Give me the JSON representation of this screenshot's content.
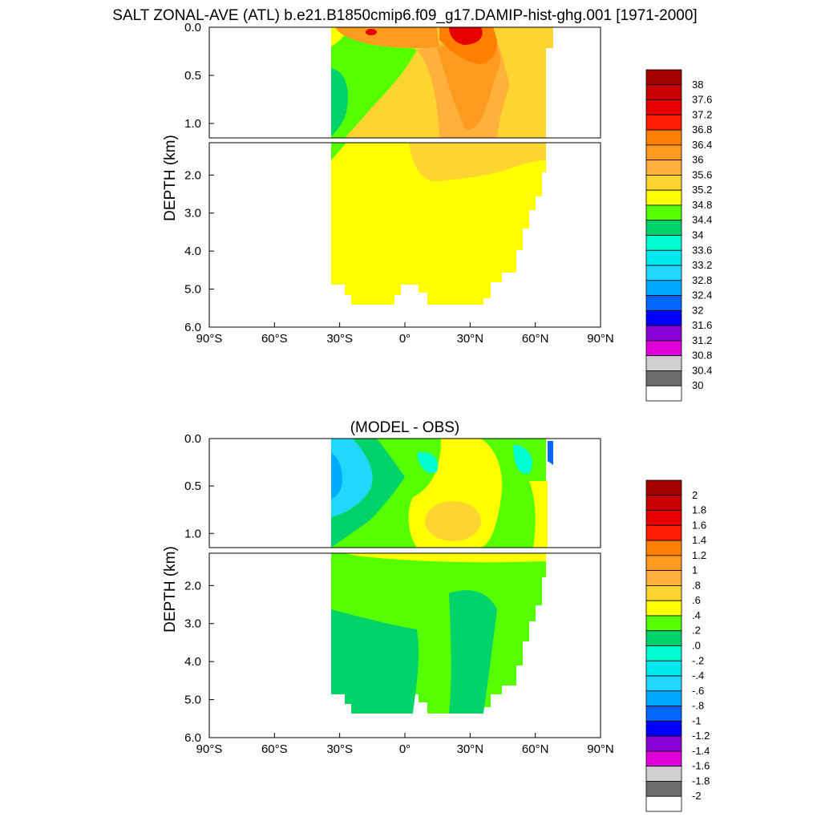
{
  "figure_title": "SALT ZONAL-AVE (ATL) b.e21.B1850cmip6.f09_g17.DAMIP-hist-ghg.001 [1971-2000]",
  "chart_data": [
    {
      "type": "heatmap",
      "title": "",
      "ylabel": "DEPTH (km)",
      "xlabel": "",
      "x_ticks": [
        "90°S",
        "60°S",
        "30°S",
        "0°",
        "30°N",
        "60°N",
        "90°N"
      ],
      "x_tick_values": [
        -90,
        -60,
        -30,
        0,
        30,
        60,
        90
      ],
      "xlim": [
        -90,
        90
      ],
      "upper_panel": {
        "ylim": [
          0,
          1.15
        ],
        "y_ticks": [
          "0.0",
          "0.5",
          "1.0"
        ],
        "y_tick_values": [
          0,
          0.5,
          1.0
        ]
      },
      "lower_panel": {
        "ylim": [
          1.15,
          6.0
        ],
        "y_ticks": [
          "2.0",
          "3.0",
          "4.0",
          "5.0",
          "6.0"
        ],
        "y_tick_values": [
          2,
          3,
          4,
          5,
          6
        ]
      },
      "colorbar": {
        "labels": [
          "38",
          "37.6",
          "37.2",
          "36.8",
          "36.4",
          "36",
          "35.6",
          "35.2",
          "34.8",
          "34.4",
          "34",
          "33.6",
          "33.2",
          "32.8",
          "32.4",
          "32",
          "31.6",
          "31.2",
          "30.8",
          "30.4",
          "30"
        ],
        "levels": [
          38,
          37.6,
          37.2,
          36.8,
          36.4,
          36,
          35.6,
          35.2,
          34.8,
          34.4,
          34,
          33.6,
          33.2,
          32.8,
          32.4,
          32,
          31.6,
          31.2,
          30.8,
          30.4,
          30
        ]
      }
    },
    {
      "type": "heatmap",
      "title": "(MODEL - OBS)",
      "ylabel": "DEPTH (km)",
      "xlabel": "",
      "x_ticks": [
        "90°S",
        "60°S",
        "30°S",
        "0°",
        "30°N",
        "60°N",
        "90°N"
      ],
      "x_tick_values": [
        -90,
        -60,
        -30,
        0,
        30,
        60,
        90
      ],
      "xlim": [
        -90,
        90
      ],
      "upper_panel": {
        "ylim": [
          0,
          1.15
        ],
        "y_ticks": [
          "0.0",
          "0.5",
          "1.0"
        ],
        "y_tick_values": [
          0,
          0.5,
          1.0
        ]
      },
      "lower_panel": {
        "ylim": [
          1.15,
          6.0
        ],
        "y_ticks": [
          "2.0",
          "3.0",
          "4.0",
          "5.0",
          "6.0"
        ],
        "y_tick_values": [
          2,
          3,
          4,
          5,
          6
        ]
      },
      "colorbar": {
        "labels": [
          "2",
          "1.8",
          "1.6",
          "1.4",
          "1.2",
          "1",
          ".8",
          ".6",
          ".4",
          ".2",
          ".0",
          "-.2",
          "-.4",
          "-.6",
          "-.8",
          "-1",
          "-1.2",
          "-1.4",
          "-1.6",
          "-1.8",
          "-2"
        ],
        "levels": [
          2,
          1.8,
          1.6,
          1.4,
          1.2,
          1,
          0.8,
          0.6,
          0.4,
          0.2,
          0,
          -0.2,
          -0.4,
          -0.6,
          -0.8,
          -1,
          -1.2,
          -1.4,
          -1.6,
          -1.8,
          -2
        ]
      }
    }
  ],
  "colors": {
    "colorbar_top_to_bottom": [
      "#a50000",
      "#c80000",
      "#e60000",
      "#ff1e00",
      "#ff7f00",
      "#ff9a20",
      "#ffb13c",
      "#ffd430",
      "#ffff00",
      "#55ff00",
      "#00d36a",
      "#00ffd0",
      "#00e8f0",
      "#20d8ff",
      "#00aaff",
      "#0066ff",
      "#0000ff",
      "#8a00d8",
      "#e000d8",
      "#d0d0d0",
      "#6e6e6e",
      "#ffffff"
    ],
    "salt_fields": {
      "base": "#ffff00",
      "green": "#55ff00",
      "light_orange": "#ffd430",
      "orange": "#ffb13c",
      "dark_orange": "#ff9a20",
      "deep_orange": "#ff7f00",
      "red": "#e60000",
      "green_patch": "#00d36a"
    },
    "diff_fields": {
      "base": "#55ff00",
      "green2": "#00d36a",
      "yellow": "#ffff00",
      "orange": "#ffd430",
      "cyan": "#00ffd0",
      "blue": "#20d8ff",
      "deep_blue": "#0066ff"
    }
  }
}
